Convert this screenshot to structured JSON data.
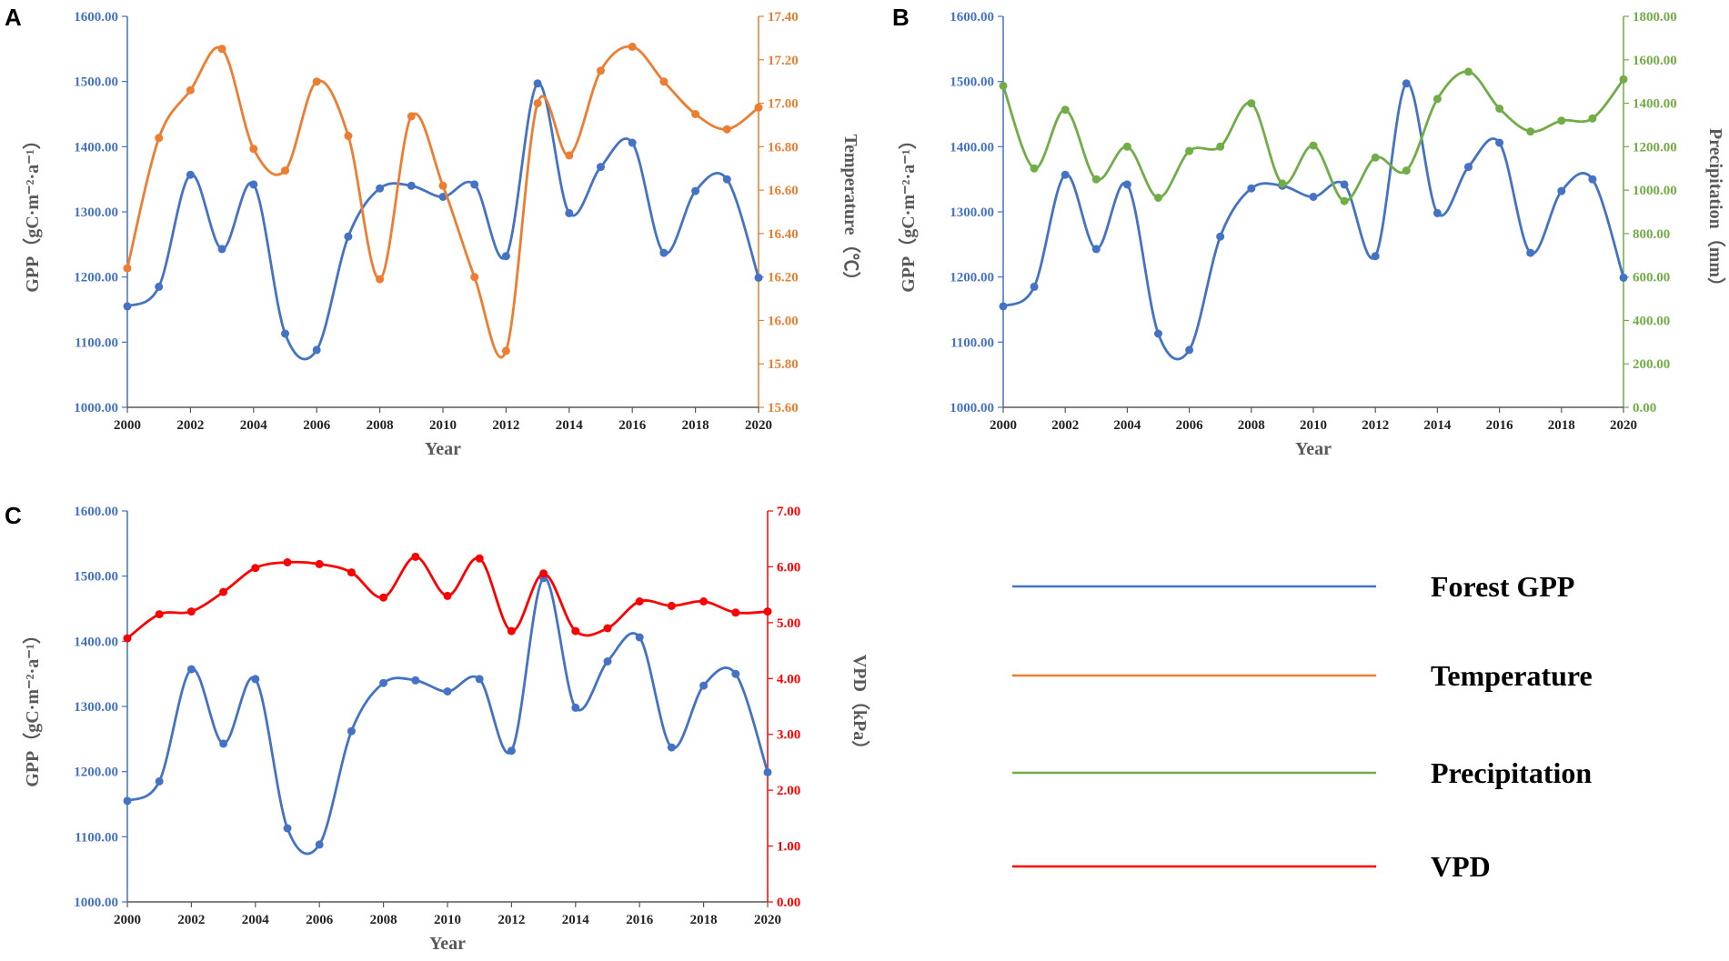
{
  "colors": {
    "gpp": "#4472C4",
    "temperature": "#ED7D31",
    "precipitation": "#70AD47",
    "vpd": "#FF0000",
    "xaxis": "#595959"
  },
  "legend": [
    {
      "label": "Forest GPP",
      "color": "#4472C4"
    },
    {
      "label": "Temperature",
      "color": "#ED7D31"
    },
    {
      "label": "Precipitation",
      "color": "#70AD47"
    },
    {
      "label": "VPD",
      "color": "#FF0000"
    }
  ],
  "chart_data": [
    {
      "panel": "A",
      "type": "line",
      "xlabel": "Year",
      "xticks": [
        "2000",
        "2002",
        "2004",
        "2006",
        "2008",
        "2010",
        "2012",
        "2014",
        "2016",
        "2018",
        "2020"
      ],
      "x": [
        2000,
        2001,
        2002,
        2003,
        2004,
        2005,
        2006,
        2007,
        2008,
        2009,
        2010,
        2011,
        2012,
        2013,
        2014,
        2015,
        2016,
        2017,
        2018,
        2019,
        2020
      ],
      "y_left": {
        "label": "GPP（gC·m⁻²·a⁻¹）",
        "range": [
          1000,
          1600
        ],
        "ticks": [
          "1000.00",
          "1100.00",
          "1200.00",
          "1300.00",
          "1400.00",
          "1500.00",
          "1600.00"
        ]
      },
      "y_right": {
        "label": "Temperature（℃）",
        "range": [
          15.6,
          17.4
        ],
        "ticks": [
          "15.60",
          "15.80",
          "16.00",
          "16.20",
          "16.40",
          "16.60",
          "16.80",
          "17.00",
          "17.20",
          "17.40"
        ]
      },
      "series": [
        {
          "name": "Forest GPP",
          "axis": "left",
          "color": "#4472C4",
          "values": [
            1155,
            1185,
            1357,
            1243,
            1342,
            1113,
            1088,
            1262,
            1336,
            1340,
            1323,
            1342,
            1232,
            1497,
            1298,
            1369,
            1406,
            1237,
            1332,
            1350,
            1199
          ]
        },
        {
          "name": "Temperature",
          "axis": "right",
          "color": "#ED7D31",
          "values": [
            16.24,
            16.84,
            17.06,
            17.25,
            16.79,
            16.69,
            17.1,
            16.85,
            16.19,
            16.94,
            16.62,
            16.2,
            15.86,
            17.0,
            16.76,
            17.15,
            17.26,
            17.1,
            16.95,
            16.88,
            16.98
          ]
        }
      ]
    },
    {
      "panel": "B",
      "type": "line",
      "xlabel": "Year",
      "xticks": [
        "2000",
        "2002",
        "2004",
        "2006",
        "2008",
        "2010",
        "2012",
        "2014",
        "2016",
        "2018",
        "2020"
      ],
      "x": [
        2000,
        2001,
        2002,
        2003,
        2004,
        2005,
        2006,
        2007,
        2008,
        2009,
        2010,
        2011,
        2012,
        2013,
        2014,
        2015,
        2016,
        2017,
        2018,
        2019,
        2020
      ],
      "y_left": {
        "label": "GPP（gC·m⁻²·a⁻¹）",
        "range": [
          1000,
          1600
        ],
        "ticks": [
          "1000.00",
          "1100.00",
          "1200.00",
          "1300.00",
          "1400.00",
          "1500.00",
          "1600.00"
        ]
      },
      "y_right": {
        "label": "Precipitation（mm）",
        "range": [
          0,
          1800
        ],
        "ticks": [
          "0.00",
          "200.00",
          "400.00",
          "600.00",
          "800.00",
          "1000.00",
          "1200.00",
          "1400.00",
          "1600.00",
          "1800.00"
        ]
      },
      "series": [
        {
          "name": "Forest GPP",
          "axis": "left",
          "color": "#4472C4",
          "values": [
            1155,
            1185,
            1357,
            1243,
            1342,
            1113,
            1088,
            1262,
            1336,
            1340,
            1323,
            1342,
            1232,
            1497,
            1298,
            1369,
            1406,
            1237,
            1332,
            1350,
            1199
          ]
        },
        {
          "name": "Precipitation",
          "axis": "right",
          "color": "#70AD47",
          "values": [
            1480,
            1100,
            1370,
            1050,
            1200,
            965,
            1180,
            1200,
            1400,
            1030,
            1205,
            950,
            1150,
            1090,
            1420,
            1545,
            1375,
            1270,
            1320,
            1330,
            1510
          ]
        }
      ]
    },
    {
      "panel": "C",
      "type": "line",
      "xlabel": "Year",
      "xticks": [
        "2000",
        "2002",
        "2004",
        "2006",
        "2008",
        "2010",
        "2012",
        "2014",
        "2016",
        "2018",
        "2020"
      ],
      "x": [
        2000,
        2001,
        2002,
        2003,
        2004,
        2005,
        2006,
        2007,
        2008,
        2009,
        2010,
        2011,
        2012,
        2013,
        2014,
        2015,
        2016,
        2017,
        2018,
        2019,
        2020
      ],
      "y_left": {
        "label": "GPP（gC·m⁻²·a⁻¹）",
        "range": [
          1000,
          1600
        ],
        "ticks": [
          "1000.00",
          "1100.00",
          "1200.00",
          "1300.00",
          "1400.00",
          "1500.00",
          "1600.00"
        ]
      },
      "y_right": {
        "label": "VPD（kPa）",
        "range": [
          0,
          7
        ],
        "ticks": [
          "0.00",
          "1.00",
          "2.00",
          "3.00",
          "4.00",
          "5.00",
          "6.00",
          "7.00"
        ]
      },
      "series": [
        {
          "name": "Forest GPP",
          "axis": "left",
          "color": "#4472C4",
          "values": [
            1155,
            1185,
            1357,
            1243,
            1342,
            1113,
            1088,
            1262,
            1336,
            1340,
            1323,
            1342,
            1232,
            1497,
            1298,
            1369,
            1406,
            1237,
            1332,
            1350,
            1199
          ]
        },
        {
          "name": "VPD",
          "axis": "right",
          "color": "#FF0000",
          "values": [
            4.72,
            5.15,
            5.2,
            5.55,
            5.98,
            6.08,
            6.05,
            5.9,
            5.45,
            6.18,
            5.48,
            6.15,
            4.85,
            5.88,
            4.85,
            4.9,
            5.38,
            5.3,
            5.38,
            5.18,
            5.2
          ]
        }
      ]
    }
  ]
}
